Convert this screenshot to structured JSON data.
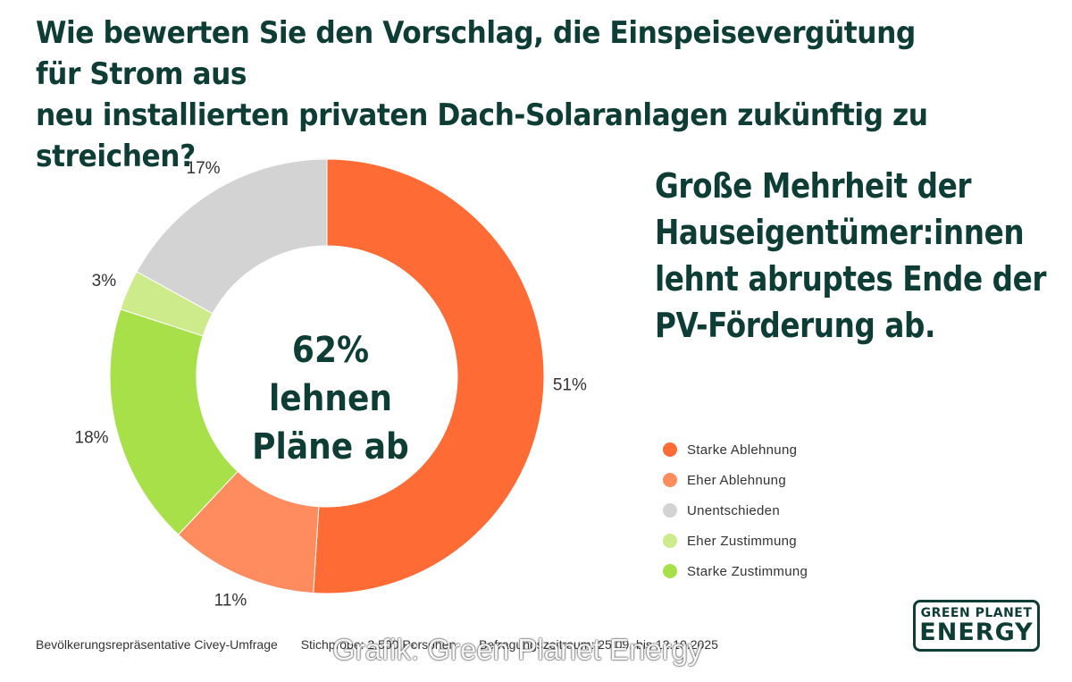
{
  "title": {
    "line1": "Wie bewerten Sie den Vorschlag, die Einspeisevergütung für Strom aus",
    "line2": "neu installierten privaten Dach-Solaranlagen zukünftig zu streichen?"
  },
  "center": {
    "line1": "62% lehnen",
    "line2": "Pläne ab"
  },
  "headline": {
    "line1": "Große Mehrheit der",
    "line2": "Hauseigentümer:innen",
    "line3": "lehnt abruptes Ende der",
    "line4": "PV-Förderung ab."
  },
  "chart_data": {
    "type": "pie",
    "donut": true,
    "start": "top, clockwise",
    "categories": [
      "Starke Ablehnung",
      "Eher Ablehnung",
      "Unentschieden",
      "Eher Zustimmung",
      "Starke Zustimmung"
    ],
    "values": [
      51,
      11,
      17,
      3,
      18
    ],
    "labels": [
      "51%",
      "11%",
      "17%",
      "3%",
      "18%"
    ],
    "order_clockwise_from_top": [
      "Starke Ablehnung",
      "Eher Ablehnung",
      "Starke Zustimmung",
      "Eher Zustimmung",
      "Unentschieden"
    ],
    "colors": {
      "Starke Ablehnung": "#ff6b35",
      "Eher Ablehnung": "#ff8c5e",
      "Unentschieden": "#d3d3d3",
      "Eher Zustimmung": "#cdeb8b",
      "Starke Zustimmung": "#a8e04a"
    }
  },
  "legend": [
    {
      "label": "Starke Ablehnung",
      "color": "#ff6b35"
    },
    {
      "label": "Eher Ablehnung",
      "color": "#ff8c5e"
    },
    {
      "label": "Unentschieden",
      "color": "#d3d3d3"
    },
    {
      "label": "Eher Zustimmung",
      "color": "#cdeb8b"
    },
    {
      "label": "Starke Zustimmung",
      "color": "#a8e04a"
    }
  ],
  "footer": {
    "survey": "Bevölkerungsrepräsentative Civey-Umfrage",
    "sample": "Stichprobe: 2.500 Personen",
    "period": "Befragungszeitraum: 25.09. bis 12.10.2025"
  },
  "credit": "Grafik: Green Planet Energy",
  "logo": {
    "top": "GREEN PLANET",
    "bottom": "ENERGY"
  }
}
